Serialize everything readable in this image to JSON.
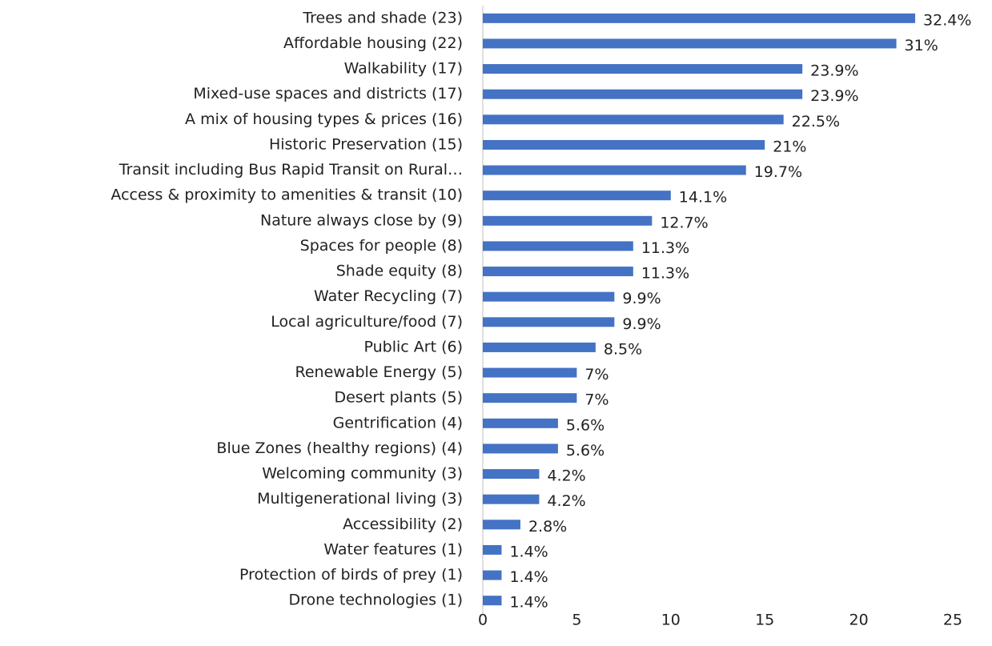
{
  "chart_data": {
    "type": "barh",
    "categories": [
      "Trees and shade (23)",
      "Affordable housing (22)",
      "Walkability (17)",
      "Mixed-use spaces and districts (17)",
      "A mix of housing types & prices (16)",
      "Historic Preservation (15)",
      "Transit including Bus Rapid Transit on Rural…",
      "Access & proximity to amenities & transit (10)",
      "Nature always close by (9)",
      "Spaces for people (8)",
      "Shade equity (8)",
      "Water Recycling (7)",
      "Local agriculture/food (7)",
      "Public Art (6)",
      "Renewable Energy (5)",
      "Desert plants (5)",
      "Gentrification (4)",
      "Blue Zones (healthy regions) (4)",
      "Welcoming community (3)",
      "Multigenerational living (3)",
      "Accessibility (2)",
      "Water features (1)",
      "Protection of birds of prey (1)",
      "Drone technologies (1)"
    ],
    "values": [
      23,
      22,
      17,
      17,
      16,
      15,
      14,
      10,
      9,
      8,
      8,
      7,
      7,
      6,
      5,
      5,
      4,
      4,
      3,
      3,
      2,
      1,
      1,
      1
    ],
    "value_labels": [
      "32.4%",
      "31%",
      "23.9%",
      "23.9%",
      "22.5%",
      "21%",
      "19.7%",
      "14.1%",
      "12.7%",
      "11.3%",
      "11.3%",
      "9.9%",
      "9.9%",
      "8.5%",
      "7%",
      "7%",
      "5.6%",
      "5.6%",
      "4.2%",
      "4.2%",
      "2.8%",
      "1.4%",
      "1.4%",
      "1.4%"
    ],
    "color": "#4472c4",
    "xlim": [
      0,
      25
    ],
    "xticks": [
      0,
      5,
      10,
      15,
      20,
      25
    ]
  }
}
